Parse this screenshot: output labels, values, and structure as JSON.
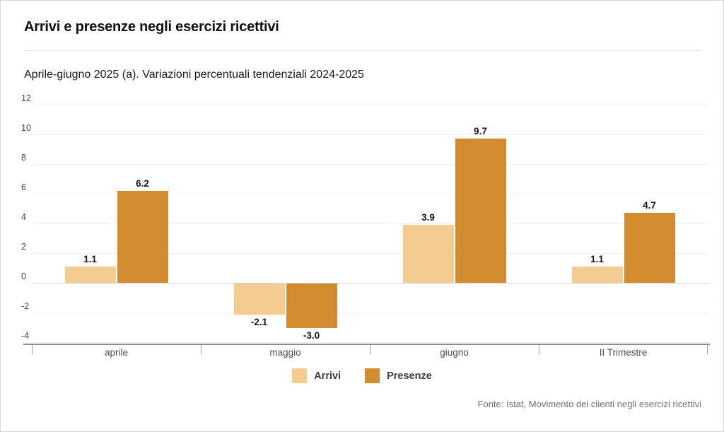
{
  "header": {
    "title": "Arrivi e presenze negli esercizi ricettivi",
    "subtitle": "Aprile-giugno 2025 (a). Variazioni percentuali tendenziali 2024-2025"
  },
  "chart_data": {
    "type": "bar",
    "categories": [
      "aprile",
      "maggio",
      "giugno",
      "II Trimestre"
    ],
    "series": [
      {
        "name": "Arrivi",
        "color": "#F4CC91",
        "values": [
          1.1,
          -2.1,
          3.9,
          1.1
        ]
      },
      {
        "name": "Presenze",
        "color": "#D28C30",
        "values": [
          6.2,
          -3.0,
          9.7,
          4.7
        ]
      }
    ],
    "ylim": [
      -4,
      12
    ],
    "yticks": [
      12,
      10,
      8,
      6,
      4,
      2,
      0,
      -2,
      -4
    ],
    "grid": true,
    "legend_position": "bottom",
    "value_labels": true,
    "value_label_decimals": 1
  },
  "footer": {
    "source": "Fonte: Istat, Movimento dei clienti negli esercizi ricettivi"
  },
  "colors": {
    "axis_line": "#8c8c8c",
    "gridline": "#efefef",
    "zero_line": "#d2d2d2"
  }
}
